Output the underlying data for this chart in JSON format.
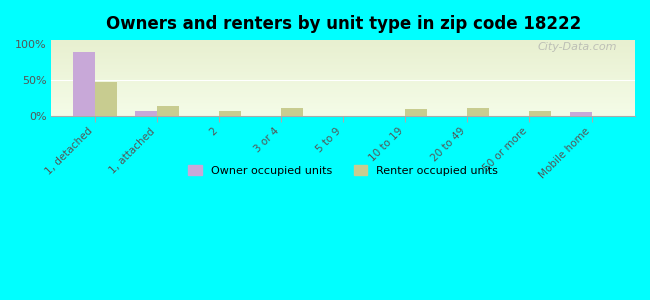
{
  "title": "Owners and renters by unit type in zip code 18222",
  "categories": [
    "1, detached",
    "1, attached",
    "2",
    "3 or 4",
    "5 to 9",
    "10 to 19",
    "20 to 49",
    "50 or more",
    "Mobile home"
  ],
  "owner_values": [
    88,
    7,
    0,
    0,
    0,
    0,
    0,
    0,
    5
  ],
  "renter_values": [
    47,
    13,
    6,
    11,
    0,
    9,
    11,
    6,
    0
  ],
  "owner_color": "#c8a8d8",
  "renter_color": "#c8cc90",
  "background_color": "#00ffff",
  "plot_bg_top": "#e8f0d0",
  "plot_bg_bottom": "#f8fced",
  "yticks": [
    0,
    50,
    100
  ],
  "ytick_labels": [
    "0%",
    "50%",
    "100%"
  ],
  "ylim": [
    0,
    105
  ],
  "bar_width": 0.35,
  "watermark": "City-Data.com",
  "legend_owner": "Owner occupied units",
  "legend_renter": "Renter occupied units"
}
